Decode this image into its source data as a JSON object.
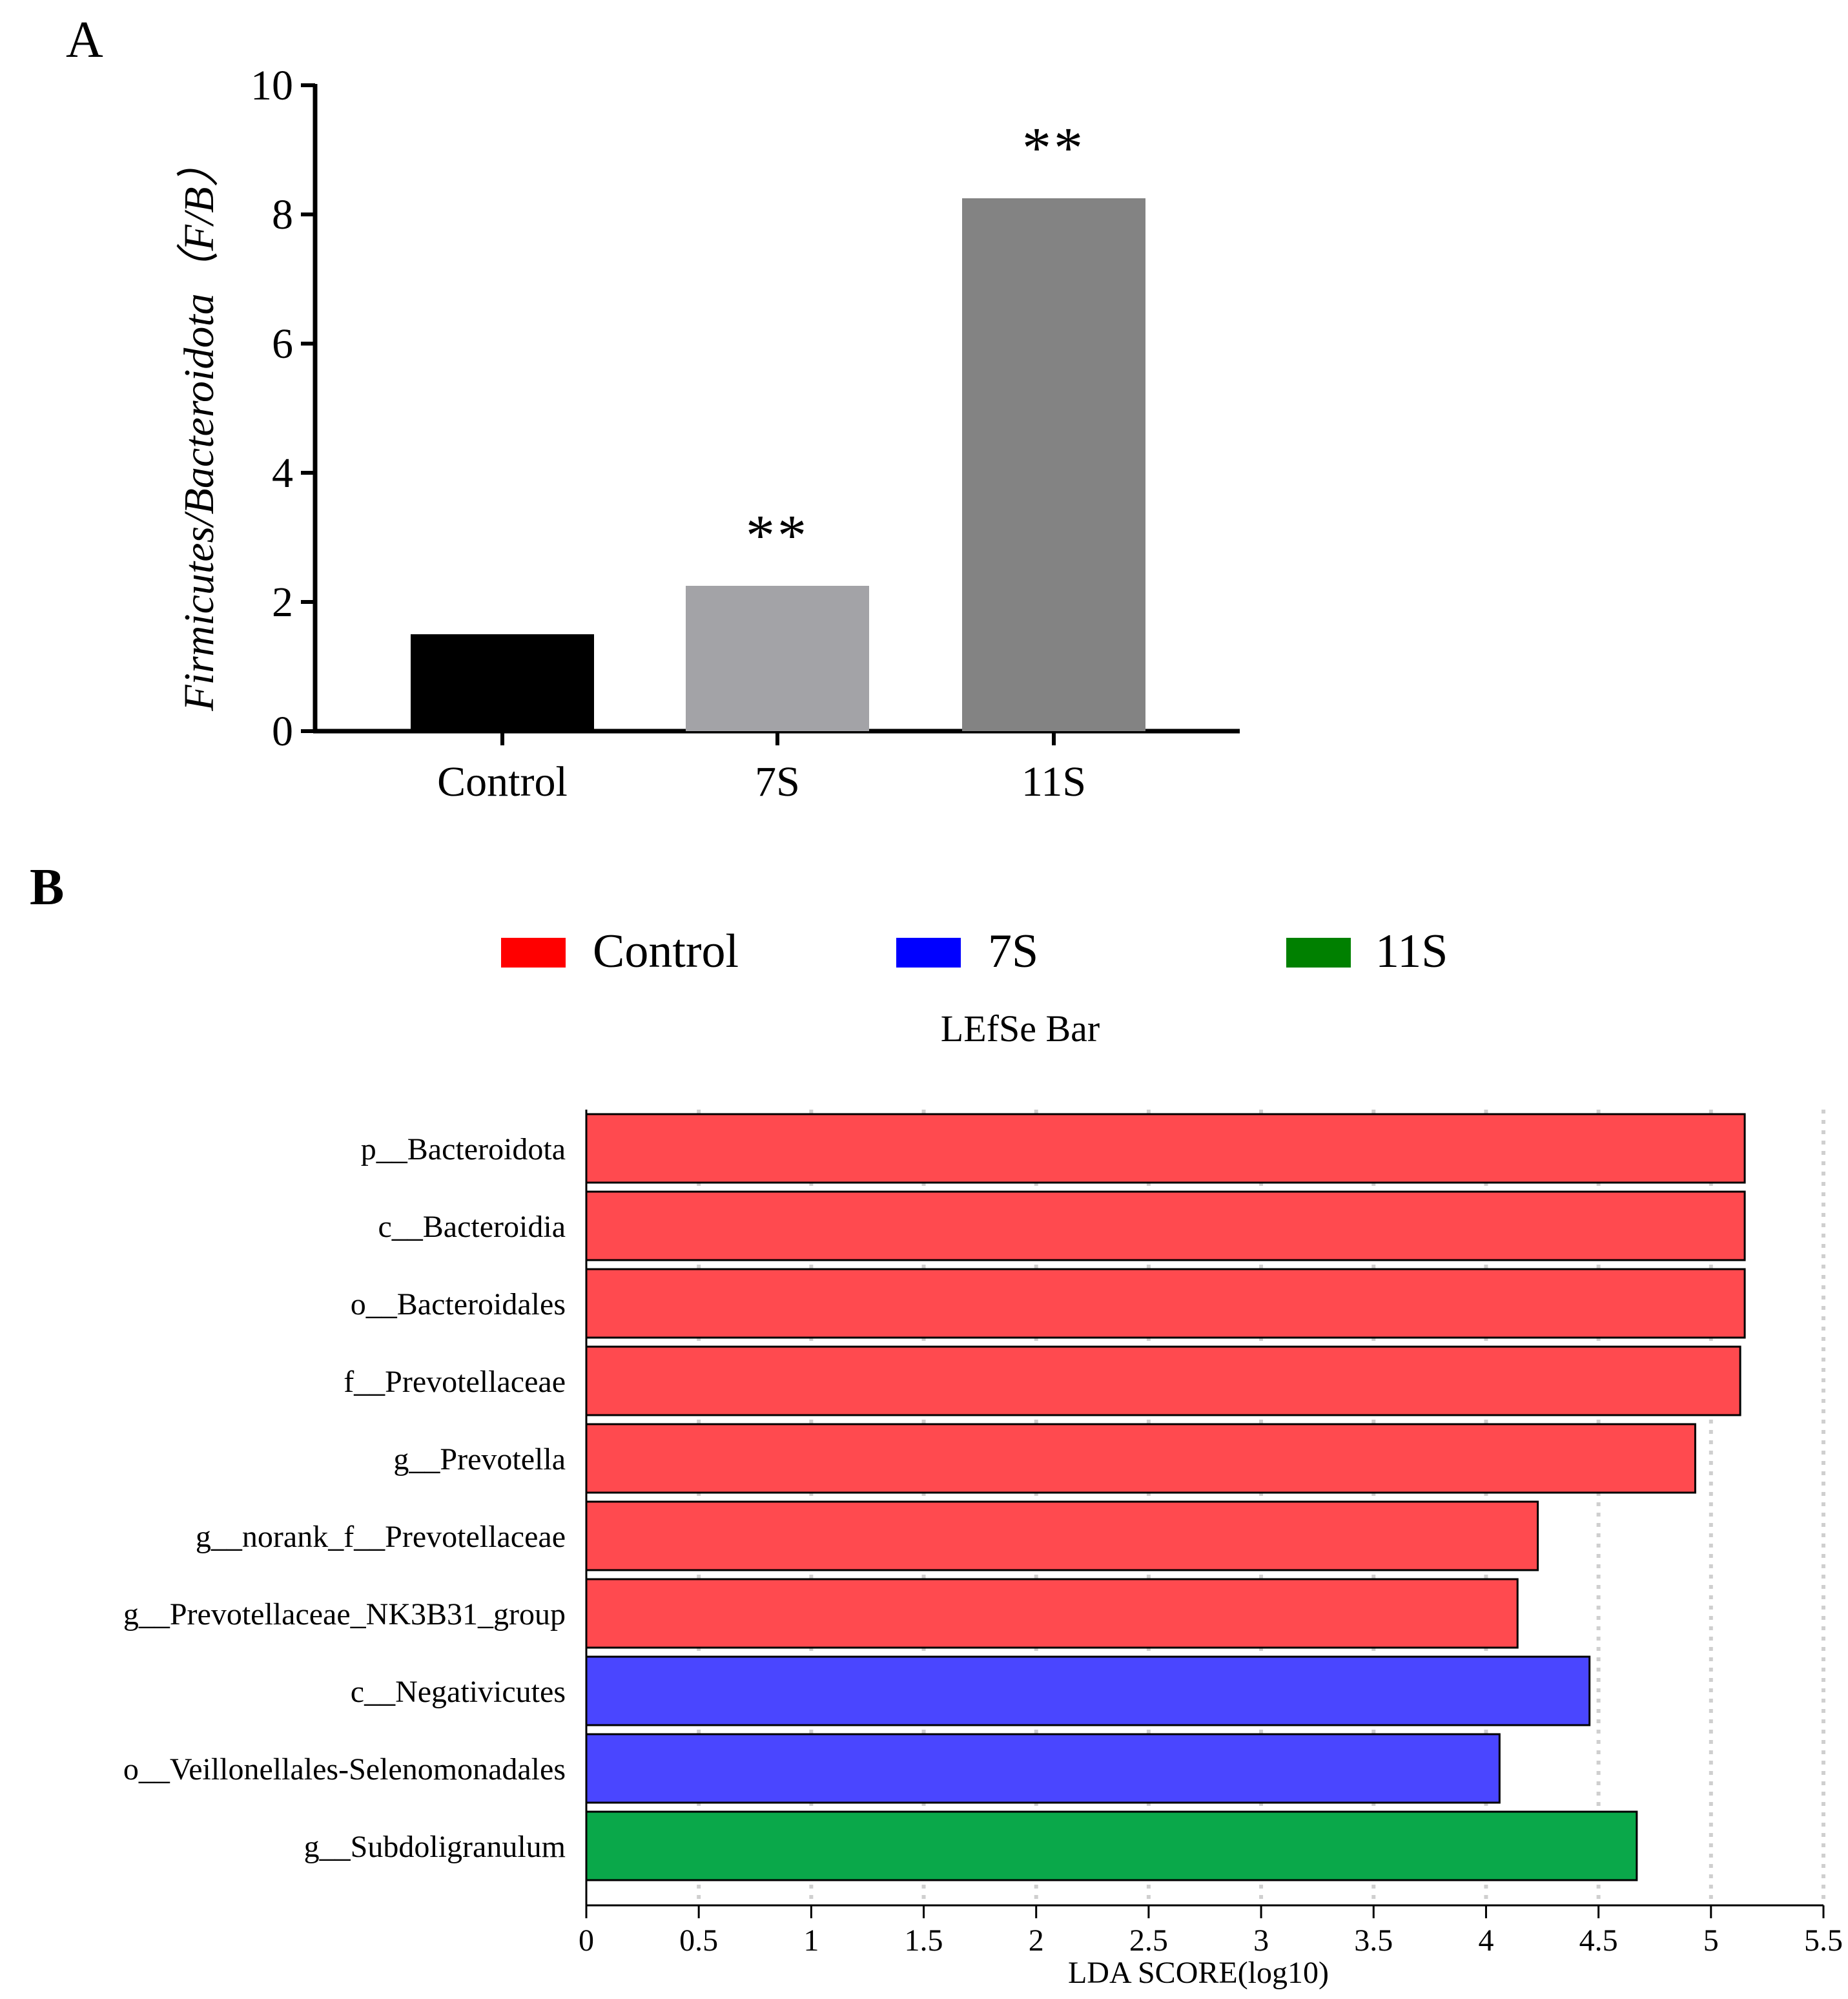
{
  "chart_data": [
    {
      "panel": "A",
      "type": "bar",
      "ylabel": "Firmicutes/Bacteroidota（F/B）",
      "categories": [
        "Control",
        "7S",
        "11S"
      ],
      "values": [
        1.5,
        2.25,
        8.25
      ],
      "ylim": [
        0,
        10
      ],
      "yticks": [
        0,
        2,
        4,
        6,
        8,
        10
      ],
      "significance": [
        "",
        "**",
        "**"
      ],
      "bar_colors": [
        "#000000",
        "#a3a3a7",
        "#838383"
      ],
      "grid": false
    },
    {
      "panel": "B",
      "type": "bar",
      "orientation": "horizontal",
      "title": "LEfSe Bar",
      "xlabel": "LDA SCORE(log10)",
      "xlim": [
        0,
        5.5
      ],
      "xticks": [
        0,
        0.5,
        1,
        1.5,
        2,
        2.5,
        3,
        3.5,
        4,
        4.5,
        5,
        5.5
      ],
      "legend": [
        {
          "name": "Control",
          "color": "#ff0000"
        },
        {
          "name": "7S",
          "color": "#0000ff"
        },
        {
          "name": "11S",
          "color": "#008000"
        }
      ],
      "categories": [
        "p__Bacteroidota",
        "c__Bacteroidia",
        "o__Bacteroidales",
        "f__Prevotellaceae",
        "g__Prevotella",
        "g__norank_f__Prevotellaceae",
        "g__Prevotellaceae_NK3B31_group",
        "c__Negativicutes",
        "o__Veillonellales-Selenomonadales",
        "g__Subdoligranulum"
      ],
      "values": [
        5.15,
        5.15,
        5.15,
        5.13,
        4.93,
        4.23,
        4.14,
        4.46,
        4.06,
        4.67
      ],
      "groups": [
        "Control",
        "Control",
        "Control",
        "Control",
        "Control",
        "Control",
        "Control",
        "7S",
        "7S",
        "11S"
      ],
      "bar_colors": {
        "Control": "#ff4a4f",
        "7S": "#4a46ff",
        "11S": "#0aa84a"
      },
      "grid": true
    }
  ]
}
